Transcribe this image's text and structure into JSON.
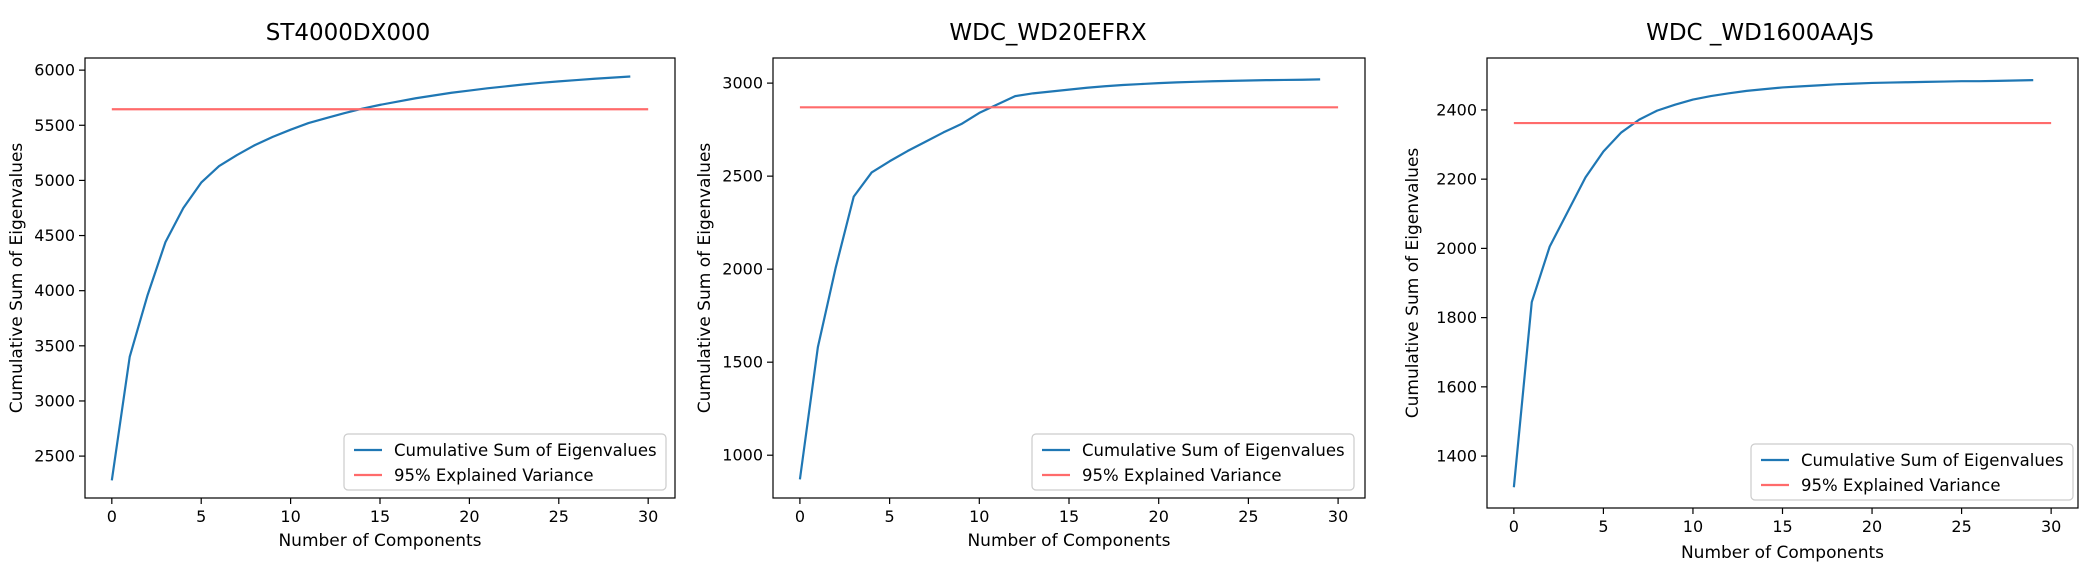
{
  "colors": {
    "cumulative_line": "#1f77b4",
    "threshold_line": "#ff6b6b",
    "axes": "#000000",
    "legend_border": "#cccccc"
  },
  "chart_data": [
    {
      "type": "line",
      "title": "ST4000DX000",
      "xlabel": "Number of Components",
      "ylabel": "Cumulative Sum of Eigenvalues",
      "xlim": [
        -1.5,
        31.5
      ],
      "ylim": [
        2120,
        6110
      ],
      "xticks": [
        0,
        5,
        10,
        15,
        20,
        25,
        30
      ],
      "yticks": [
        2500,
        3000,
        3500,
        4000,
        4500,
        5000,
        5500,
        6000
      ],
      "grid": false,
      "legend_position": "lower right",
      "series": [
        {
          "name": "Cumulative Sum of Eigenvalues",
          "color": "#1f77b4",
          "x": [
            0,
            1,
            2,
            3,
            4,
            5,
            6,
            7,
            8,
            9,
            10,
            11,
            12,
            13,
            14,
            15,
            16,
            17,
            18,
            19,
            20,
            21,
            22,
            23,
            24,
            25,
            26,
            27,
            28,
            29
          ],
          "y": [
            2280,
            3400,
            3960,
            4440,
            4750,
            4980,
            5130,
            5230,
            5320,
            5395,
            5460,
            5520,
            5565,
            5610,
            5650,
            5685,
            5715,
            5745,
            5770,
            5795,
            5815,
            5835,
            5852,
            5870,
            5885,
            5898,
            5910,
            5922,
            5932,
            5942
          ]
        },
        {
          "name": "95% Explained Variance",
          "color": "#ff6b6b",
          "x": [
            0,
            30
          ],
          "y": [
            5645,
            5645
          ]
        }
      ]
    },
    {
      "type": "line",
      "title": "WDC_WD20EFRX",
      "xlabel": "Number of Components",
      "ylabel": "Cumulative Sum of Eigenvalues",
      "xlim": [
        -1.5,
        31.5
      ],
      "ylim": [
        770,
        3135
      ],
      "xticks": [
        0,
        5,
        10,
        15,
        20,
        25,
        30
      ],
      "yticks": [
        1000,
        1500,
        2000,
        2500,
        3000
      ],
      "grid": false,
      "legend_position": "lower right",
      "series": [
        {
          "name": "Cumulative Sum of Eigenvalues",
          "color": "#1f77b4",
          "x": [
            0,
            1,
            2,
            3,
            4,
            5,
            6,
            7,
            8,
            9,
            10,
            11,
            12,
            13,
            14,
            15,
            16,
            17,
            18,
            19,
            20,
            21,
            22,
            23,
            24,
            25,
            26,
            27,
            28,
            29
          ],
          "y": [
            870,
            1580,
            2010,
            2390,
            2520,
            2580,
            2635,
            2685,
            2735,
            2780,
            2840,
            2885,
            2930,
            2945,
            2955,
            2965,
            2975,
            2983,
            2990,
            2995,
            3000,
            3004,
            3007,
            3010,
            3012,
            3014,
            3016,
            3017,
            3018,
            3020
          ]
        },
        {
          "name": "95% Explained Variance",
          "color": "#ff6b6b",
          "x": [
            0,
            30
          ],
          "y": [
            2870,
            2870
          ]
        }
      ]
    },
    {
      "type": "line",
      "title": "WDC _WD1600AAJS",
      "xlabel": "Number of Components",
      "ylabel": "Cumulative Sum of Eigenvalues",
      "xlim": [
        -1.5,
        31.5
      ],
      "ylim": [
        1250,
        2550
      ],
      "xticks": [
        0,
        5,
        10,
        15,
        20,
        25,
        30
      ],
      "yticks": [
        1400,
        1600,
        1800,
        2000,
        2200,
        2400
      ],
      "grid": false,
      "legend_position": "lower right",
      "series": [
        {
          "name": "Cumulative Sum of Eigenvalues",
          "color": "#1f77b4",
          "x": [
            0,
            1,
            2,
            3,
            4,
            5,
            6,
            7,
            8,
            9,
            10,
            11,
            12,
            13,
            14,
            15,
            16,
            17,
            18,
            19,
            20,
            21,
            22,
            23,
            24,
            25,
            26,
            27,
            28,
            29
          ],
          "y": [
            1310,
            1845,
            2005,
            2105,
            2205,
            2280,
            2335,
            2372,
            2398,
            2415,
            2430,
            2440,
            2448,
            2455,
            2460,
            2465,
            2468,
            2471,
            2474,
            2476,
            2478,
            2479,
            2480,
            2481,
            2482,
            2483,
            2483,
            2484,
            2485,
            2486
          ]
        },
        {
          "name": "95% Explained Variance",
          "color": "#ff6b6b",
          "x": [
            0,
            30
          ],
          "y": [
            2362,
            2362
          ]
        }
      ]
    }
  ]
}
